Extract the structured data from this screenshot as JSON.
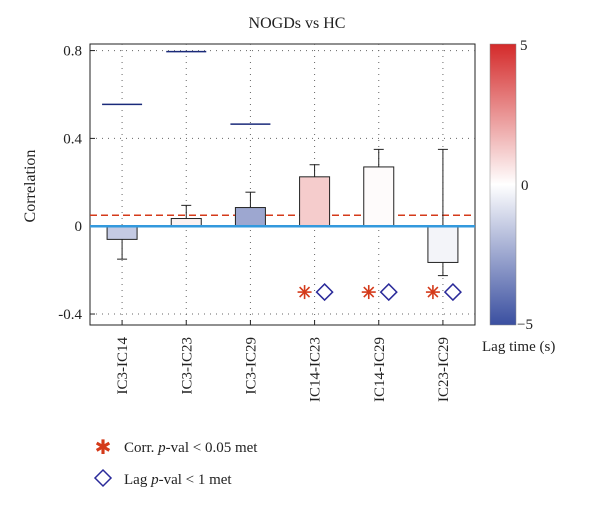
{
  "chart_data": {
    "type": "bar",
    "title": "NOGDs vs HC",
    "ylabel": "Correlation",
    "xlabel": "",
    "ylim": [
      -0.45,
      0.83
    ],
    "yticks": [
      -0.4,
      0,
      0.4,
      0.8
    ],
    "ytick_labels": [
      "-0.4",
      "0",
      "0.4",
      "0.8"
    ],
    "grid": true,
    "categories": [
      "IC3-IC14",
      "IC3-IC23",
      "IC3-IC29",
      "IC14-IC23",
      "IC14-IC29",
      "IC23-IC29"
    ],
    "values": [
      -0.06,
      0.035,
      0.085,
      0.225,
      0.27,
      -0.165
    ],
    "error_upper": [
      null,
      0.095,
      0.155,
      0.28,
      0.35,
      0.35
    ],
    "error_lower": [
      -0.15,
      null,
      null,
      null,
      null,
      -0.225
    ],
    "lag_time_s": [
      -1.5,
      0.3,
      -2.5,
      1.2,
      0.1,
      -0.3
    ],
    "navy_marks": [
      0.555,
      0.795,
      0.465,
      null,
      null,
      null
    ],
    "threshold_line": 0.05,
    "zero_line": 0,
    "corr_sig": [
      false,
      false,
      false,
      true,
      true,
      true
    ],
    "lag_sig": [
      false,
      false,
      false,
      true,
      true,
      true
    ],
    "marker_level": -0.3,
    "colorbar": {
      "label": "Lag time (s)",
      "range": [
        -5,
        5
      ],
      "ticks": [
        "5",
        "0",
        "−5"
      ],
      "colors": [
        "#d42a2a",
        "#ffffff",
        "#3a4fa0"
      ]
    },
    "legend": [
      {
        "marker": "asterisk",
        "label": "Corr. p-val < 0.05 met",
        "prefix": "Corr. ",
        "italic": "p",
        "suffix": "-val < 0.05 met"
      },
      {
        "marker": "diamond",
        "label": "Lag p-val < 1 met",
        "prefix": "Lag ",
        "italic": "p",
        "suffix": "-val < 1 met"
      }
    ]
  }
}
